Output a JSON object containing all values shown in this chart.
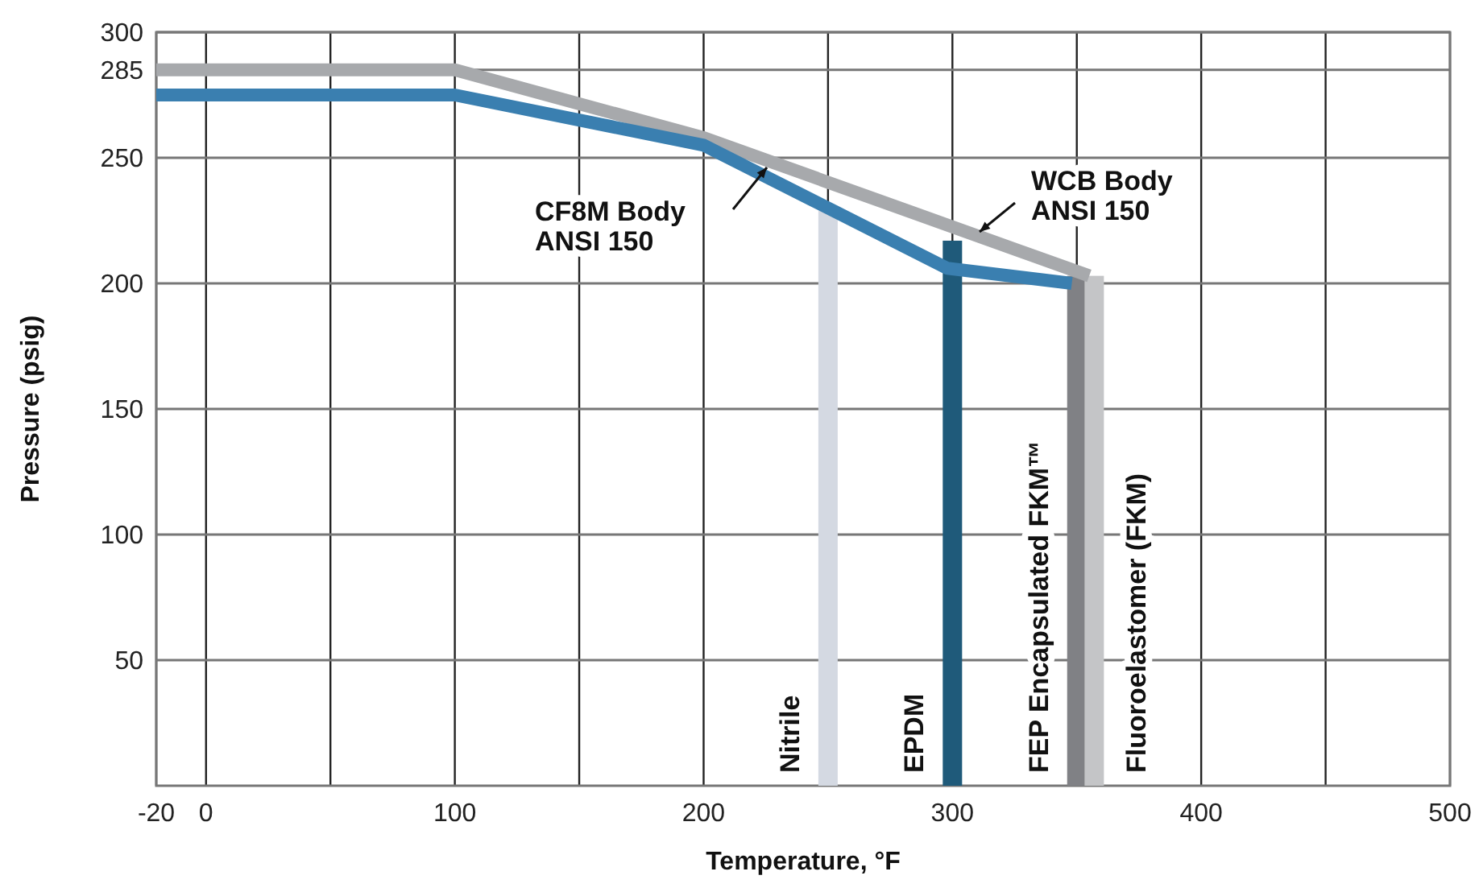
{
  "chart_data": {
    "type": "line",
    "xlabel": "Temperature, °F",
    "ylabel": "Pressure (psig)",
    "xlim": [
      -20,
      500
    ],
    "ylim": [
      0,
      300
    ],
    "xticks": [
      -20,
      0,
      {
        "value": 50,
        "label": null
      },
      100,
      {
        "value": 150,
        "label": null
      },
      200,
      {
        "value": 250,
        "label": null
      },
      300,
      {
        "value": 350,
        "label": null
      },
      400,
      {
        "value": 450,
        "label": null
      },
      500
    ],
    "yticks": [
      50,
      100,
      150,
      200,
      250,
      285,
      300
    ],
    "grid": true,
    "series": [
      {
        "type": "bar",
        "name": "Nitrile",
        "color": "#d4d9e2",
        "x": [
          250
        ],
        "values": [
          229
        ]
      },
      {
        "type": "bar",
        "name": "EPDM",
        "color": "#1f5a7a",
        "x": [
          300
        ],
        "values": [
          217
        ]
      },
      {
        "type": "bar",
        "name": "FEP Encapsulated FKM™",
        "color": "#808185",
        "x": [
          350
        ],
        "values": [
          203
        ]
      },
      {
        "type": "bar",
        "name": "Fluoroelastomer (FKM)",
        "color": "#c4c5c7",
        "x": [
          357
        ],
        "values": [
          203
        ]
      },
      {
        "name": "WCB Body ANSI 150",
        "color": "#a7a9ac",
        "x": [
          -20,
          100,
          200,
          355
        ],
        "values": [
          285,
          285,
          258,
          203
        ]
      },
      {
        "name": "CF8M Body ANSI 150",
        "color": "#3a7fb0",
        "x": [
          -20,
          100,
          200,
          298,
          348
        ],
        "values": [
          275,
          275,
          255,
          206,
          200
        ]
      }
    ]
  }
}
